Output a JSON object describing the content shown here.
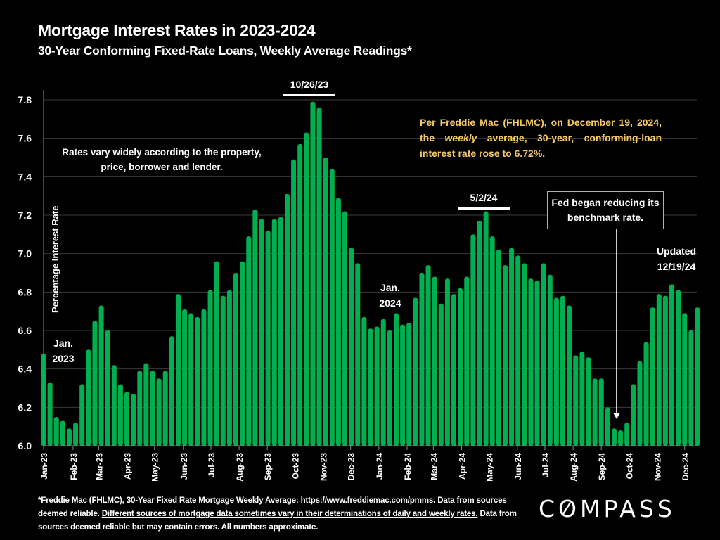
{
  "header": {
    "title": "Mortgage Interest Rates in 2023-2024",
    "subtitle_pre": "30-Year Conforming Fixed-Rate Loans, ",
    "subtitle_underlined": "Weekly",
    "subtitle_post": " Average Readings*"
  },
  "annotations": {
    "peak_2023": "10/26/23",
    "peak_2024": "5/2/24",
    "jan_2023_line1": "Jan.",
    "jan_2023_line2": "2023",
    "jan_2024_line1": "Jan.",
    "jan_2024_line2": "2024",
    "updated_line1": "Updated",
    "updated_line2": "12/19/24",
    "rates_vary": "Rates vary widely according to the property, price, borrower and lender.",
    "fed_box": "Fed began reducing its benchmark rate.",
    "freddie_pre": "Per Freddie Mac (FHLMC), on December 19, 2024, the ",
    "freddie_italic": "weekly",
    "freddie_post": " average, 30-year, conforming-loan interest rate rose to 6.72%."
  },
  "footnote": {
    "part1": "*Freddie Mac (FHLMC), 30-Year Fixed Rate Mortgage Weekly Average:  https://www.freddiemac.com/pmms. Data from sources deemed reliable. ",
    "underlined": "Different sources of mortgage data sometimes vary in their determinations of daily and weekly rates.",
    "part2": " Data from sources deemed reliable but may contain errors. All numbers approximate."
  },
  "logo": {
    "text_before": "C",
    "text_o": "O",
    "text_after": "MPASS"
  },
  "colors": {
    "bar": "#00b050",
    "gold_text": "#f5c96a",
    "grid": "#3a3a3a",
    "background": "#000000"
  },
  "chart_data": {
    "type": "bar",
    "title": "Mortgage Interest Rates in 2023-2024",
    "xlabel": "",
    "ylabel": "Percentage Interest  Rate",
    "ylim": [
      6.0,
      7.8
    ],
    "yticks": [
      "6.0",
      "6.2",
      "6.4",
      "6.6",
      "6.8",
      "7.0",
      "7.2",
      "7.4",
      "7.6",
      "7.8"
    ],
    "grid": true,
    "month_ticks": [
      "Jan-23",
      "Feb-23",
      "Mar-23",
      "Apr-23",
      "May-23",
      "Jun-23",
      "Jul-23",
      "Aug-23",
      "Sep-23",
      "Oct-23",
      "Nov-23",
      "Dec-23",
      "Jan-24",
      "Feb-24",
      "Mar-24",
      "Apr-24",
      "May-24",
      "Jun-24",
      "Jul-24",
      "Aug-24",
      "Sep-24",
      "Oct-24",
      "Nov-24",
      "Dec-24"
    ],
    "month_tick_week_index": [
      0,
      4.6,
      8.6,
      13,
      17.3,
      21.8,
      26.1,
      30.5,
      34.9,
      39.2,
      43.6,
      47.9,
      52.3,
      56.7,
      60.8,
      65.2,
      69.5,
      73.9,
      78.2,
      82.6,
      87,
      91.3,
      95.7,
      100
    ],
    "series": [
      {
        "name": "30-Year Fixed Rate Weekly Average",
        "values": [
          6.48,
          6.33,
          6.15,
          6.13,
          6.09,
          6.12,
          6.32,
          6.5,
          6.65,
          6.73,
          6.6,
          6.42,
          6.32,
          6.28,
          6.27,
          6.39,
          6.43,
          6.39,
          6.35,
          6.39,
          6.57,
          6.79,
          6.71,
          6.69,
          6.67,
          6.71,
          6.81,
          6.96,
          6.78,
          6.81,
          6.9,
          6.96,
          7.09,
          7.23,
          7.18,
          7.12,
          7.18,
          7.19,
          7.31,
          7.49,
          7.57,
          7.63,
          7.79,
          7.76,
          7.5,
          7.44,
          7.29,
          7.22,
          7.03,
          6.95,
          6.67,
          6.61,
          6.62,
          6.66,
          6.6,
          6.69,
          6.63,
          6.64,
          6.77,
          6.9,
          6.94,
          6.88,
          6.74,
          6.87,
          6.79,
          6.82,
          6.88,
          7.1,
          7.17,
          7.22,
          7.09,
          7.02,
          6.94,
          7.03,
          6.99,
          6.95,
          6.87,
          6.86,
          6.95,
          6.89,
          6.77,
          6.78,
          6.73,
          6.47,
          6.49,
          6.46,
          6.35,
          6.35,
          6.2,
          6.09,
          6.08,
          6.12,
          6.32,
          6.44,
          6.54,
          6.72,
          6.79,
          6.78,
          6.84,
          6.81,
          6.69,
          6.6,
          6.72
        ]
      }
    ],
    "highlights": [
      {
        "label": "10/26/23",
        "value": 7.79
      },
      {
        "label": "5/2/24",
        "value": 7.22
      },
      {
        "label": "Fed began reducing its benchmark rate.",
        "target": "Sep-24"
      },
      {
        "label": "Updated 12/19/24",
        "value": 6.72
      }
    ]
  }
}
